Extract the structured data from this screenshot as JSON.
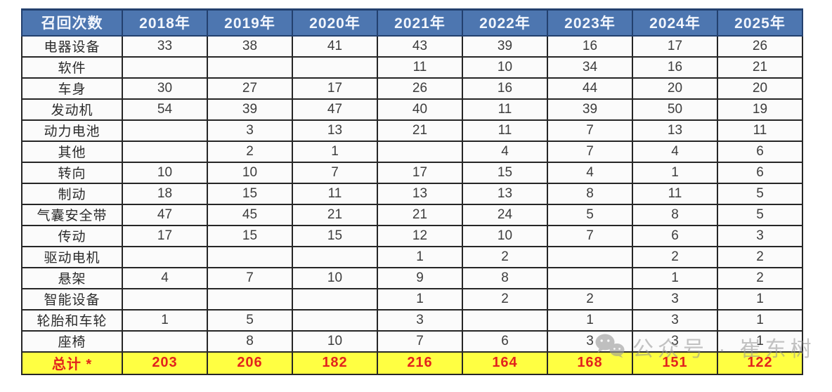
{
  "colors": {
    "header_bg": "#4d76b0",
    "header_border": "#23406e",
    "grid_border": "#262626",
    "total_bg": "#ffff42",
    "total_text": "#e2231c",
    "body_text": "#3d3d3d",
    "watermark_color": "#919191"
  },
  "watermark": {
    "icon": "wechat-icon",
    "text": "公众号 · 崔东树"
  },
  "chart_data": {
    "type": "table",
    "title": "召回次数",
    "legend_position": "none",
    "grid": true,
    "columns": [
      "召回次数",
      "2018年",
      "2019年",
      "2020年",
      "2021年",
      "2022年",
      "2023年",
      "2024年",
      "2025年"
    ],
    "rows": [
      {
        "label": "电器设备",
        "values": [
          "33",
          "38",
          "41",
          "43",
          "39",
          "16",
          "17",
          "26"
        ]
      },
      {
        "label": "软件",
        "values": [
          "",
          "",
          "",
          "11",
          "10",
          "34",
          "16",
          "21"
        ]
      },
      {
        "label": "车身",
        "values": [
          "30",
          "27",
          "17",
          "26",
          "16",
          "44",
          "20",
          "20"
        ]
      },
      {
        "label": "发动机",
        "values": [
          "54",
          "39",
          "47",
          "40",
          "11",
          "39",
          "50",
          "19"
        ]
      },
      {
        "label": "动力电池",
        "values": [
          "",
          "3",
          "13",
          "21",
          "11",
          "7",
          "13",
          "11"
        ]
      },
      {
        "label": "其他",
        "values": [
          "",
          "2",
          "1",
          "",
          "4",
          "7",
          "4",
          "6"
        ]
      },
      {
        "label": "转向",
        "values": [
          "10",
          "10",
          "7",
          "17",
          "15",
          "4",
          "1",
          "6"
        ]
      },
      {
        "label": "制动",
        "values": [
          "18",
          "15",
          "11",
          "13",
          "13",
          "8",
          "11",
          "5"
        ]
      },
      {
        "label": "气囊安全带",
        "values": [
          "47",
          "45",
          "21",
          "21",
          "24",
          "5",
          "8",
          "5"
        ]
      },
      {
        "label": "传动",
        "values": [
          "17",
          "15",
          "15",
          "12",
          "10",
          "7",
          "6",
          "3"
        ]
      },
      {
        "label": "驱动电机",
        "values": [
          "",
          "",
          "",
          "1",
          "2",
          "",
          "2",
          "2"
        ]
      },
      {
        "label": "悬架",
        "values": [
          "4",
          "7",
          "10",
          "9",
          "8",
          "",
          "1",
          "2"
        ]
      },
      {
        "label": "智能设备",
        "values": [
          "",
          "",
          "",
          "1",
          "2",
          "2",
          "3",
          "1"
        ]
      },
      {
        "label": "轮胎和车轮",
        "values": [
          "1",
          "5",
          "",
          "3",
          "",
          "1",
          "3",
          "1"
        ]
      },
      {
        "label": "座椅",
        "values": [
          "",
          "8",
          "10",
          "7",
          "6",
          "3",
          "3",
          "1"
        ]
      }
    ],
    "total_row": {
      "label": "总计 *",
      "values": [
        "203",
        "206",
        "182",
        "216",
        "164",
        "168",
        "151",
        "122"
      ]
    },
    "layout": {
      "first_col_width": 143,
      "year_col_width": 121
    }
  }
}
